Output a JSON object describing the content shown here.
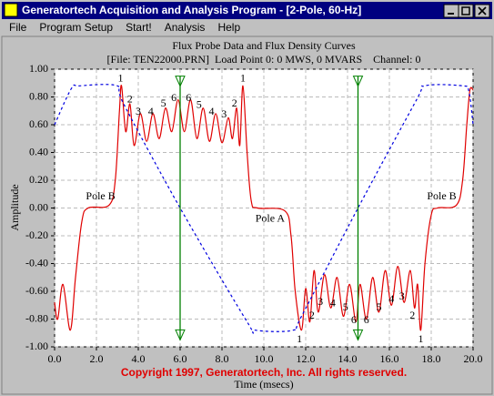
{
  "window": {
    "title": "Generatortech Acquisition and Analysis Program - [2-Pole, 60-Hz]",
    "menu": [
      "File",
      "Program Setup",
      "Start!",
      "Analysis",
      "Help"
    ]
  },
  "chart_data": {
    "type": "line",
    "title": "Flux Probe Data and Flux Density Curves",
    "subtitle": "[File: TEN22000.PRN]  Load Point 0: 0 MWS, 0 MVARS    Channel: 0",
    "xlabel": "Time (msecs)",
    "ylabel": "Amplitude",
    "footer": "Copyright 1997, Generatortech, Inc. All rights reserved.",
    "xlim": [
      0,
      20
    ],
    "ylim": [
      -1,
      1
    ],
    "grid": true,
    "xticks": [
      {
        "value": 0,
        "label": "0.0"
      },
      {
        "value": 2,
        "label": "2.0"
      },
      {
        "value": 4,
        "label": "4.0"
      },
      {
        "value": 6,
        "label": "6.0"
      },
      {
        "value": 8,
        "label": "8.0"
      },
      {
        "value": 10,
        "label": "10.0"
      },
      {
        "value": 12,
        "label": "12.0"
      },
      {
        "value": 14,
        "label": "14.0"
      },
      {
        "value": 16,
        "label": "16.0"
      },
      {
        "value": 18,
        "label": "18.0"
      },
      {
        "value": 20,
        "label": "20.0"
      }
    ],
    "yticks": [
      {
        "value": 1,
        "label": "1.00"
      },
      {
        "value": 0.8,
        "label": "0.80"
      },
      {
        "value": 0.6,
        "label": "0.60"
      },
      {
        "value": 0.4,
        "label": "0.40"
      },
      {
        "value": 0.2,
        "label": "0.20"
      },
      {
        "value": 0,
        "label": "0.00"
      },
      {
        "value": -0.2,
        "label": "-0.20"
      },
      {
        "value": -0.4,
        "label": "-0.40"
      },
      {
        "value": -0.6,
        "label": "-0.60"
      },
      {
        "value": -0.8,
        "label": "-0.80"
      },
      {
        "value": -1,
        "label": "-1.00"
      }
    ],
    "series": [
      {
        "color": "#e00000",
        "dash": false,
        "x": [
          0,
          0.15,
          0.4,
          0.75,
          1.0,
          1.3,
          1.6,
          2.6,
          2.9,
          3.1,
          3.2,
          3.4,
          3.6,
          3.8,
          4.1,
          4.4,
          4.7,
          5.0,
          5.3,
          5.6,
          5.9,
          6.2,
          6.5,
          6.8,
          7.1,
          7.4,
          7.7,
          8.0,
          8.3,
          8.5,
          8.7,
          8.85,
          9.0,
          9.2,
          9.4,
          9.7,
          11.0,
          11.3,
          11.5,
          11.8,
          12.0,
          12.2,
          12.4,
          12.6,
          12.9,
          13.2,
          13.5,
          13.8,
          14.1,
          14.4,
          14.6,
          14.9,
          15.2,
          15.5,
          15.8,
          16.1,
          16.4,
          16.7,
          17.0,
          17.2,
          17.35,
          17.5,
          17.7,
          18.0,
          18.3,
          19.2,
          19.5,
          19.7,
          19.85,
          20.0
        ],
        "values": [
          -0.68,
          -0.8,
          -0.55,
          -0.88,
          -0.5,
          -0.1,
          0.0,
          0.02,
          0.2,
          0.7,
          0.88,
          0.55,
          0.75,
          0.45,
          0.68,
          0.48,
          0.68,
          0.5,
          0.72,
          0.55,
          0.78,
          0.55,
          0.78,
          0.5,
          0.72,
          0.48,
          0.68,
          0.47,
          0.65,
          0.5,
          0.72,
          0.45,
          0.88,
          0.4,
          0.05,
          0.0,
          -0.02,
          -0.2,
          -0.6,
          -0.88,
          -0.58,
          -0.82,
          -0.45,
          -0.75,
          -0.48,
          -0.72,
          -0.5,
          -0.78,
          -0.55,
          -0.82,
          -0.55,
          -0.8,
          -0.5,
          -0.75,
          -0.45,
          -0.7,
          -0.42,
          -0.68,
          -0.45,
          -0.72,
          -0.55,
          -0.88,
          -0.4,
          -0.05,
          0.0,
          0.02,
          0.2,
          0.6,
          0.85,
          0.85
        ]
      },
      {
        "color": "#0000e0",
        "dash": true,
        "x": [
          0,
          0.8,
          1.2,
          3.0,
          3.3,
          6.0,
          9.2,
          9.6,
          11.4,
          11.8,
          14.5,
          17.3,
          17.7,
          19.5,
          19.8,
          20.0
        ],
        "values": [
          0.6,
          0.86,
          0.88,
          0.88,
          0.75,
          0.0,
          -0.82,
          -0.88,
          -0.88,
          -0.78,
          0.0,
          0.78,
          0.88,
          0.88,
          0.84,
          0.6
        ]
      }
    ],
    "cursors": [
      6.0,
      14.5
    ],
    "cursor_color": "#008000",
    "annotations": [
      {
        "text": "1",
        "x": 3.15,
        "y": 0.93
      },
      {
        "text": "2",
        "x": 3.6,
        "y": 0.78
      },
      {
        "text": "3",
        "x": 4.0,
        "y": 0.69
      },
      {
        "text": "4",
        "x": 4.6,
        "y": 0.69
      },
      {
        "text": "5",
        "x": 5.2,
        "y": 0.75
      },
      {
        "text": "6",
        "x": 5.7,
        "y": 0.79
      },
      {
        "text": "6",
        "x": 6.4,
        "y": 0.79
      },
      {
        "text": "5",
        "x": 6.9,
        "y": 0.74
      },
      {
        "text": "4",
        "x": 7.5,
        "y": 0.69
      },
      {
        "text": "3",
        "x": 8.1,
        "y": 0.67
      },
      {
        "text": "2",
        "x": 8.6,
        "y": 0.75
      },
      {
        "text": "1",
        "x": 9.0,
        "y": 0.93
      },
      {
        "text": "1",
        "x": 11.7,
        "y": -0.95
      },
      {
        "text": "2",
        "x": 12.3,
        "y": -0.78
      },
      {
        "text": "3",
        "x": 12.7,
        "y": -0.68
      },
      {
        "text": "4",
        "x": 13.3,
        "y": -0.69
      },
      {
        "text": "5",
        "x": 13.9,
        "y": -0.72
      },
      {
        "text": "6",
        "x": 14.3,
        "y": -0.81
      },
      {
        "text": "6",
        "x": 14.9,
        "y": -0.81
      },
      {
        "text": "5",
        "x": 15.5,
        "y": -0.72
      },
      {
        "text": "4",
        "x": 16.1,
        "y": -0.66
      },
      {
        "text": "3",
        "x": 16.6,
        "y": -0.64
      },
      {
        "text": "2",
        "x": 17.1,
        "y": -0.78
      },
      {
        "text": "1",
        "x": 17.5,
        "y": -0.95
      },
      {
        "text": "Pole B",
        "x": 2.2,
        "y": 0.08
      },
      {
        "text": "Pole A",
        "x": 10.3,
        "y": -0.08
      },
      {
        "text": "Pole B",
        "x": 18.5,
        "y": 0.08
      }
    ]
  }
}
